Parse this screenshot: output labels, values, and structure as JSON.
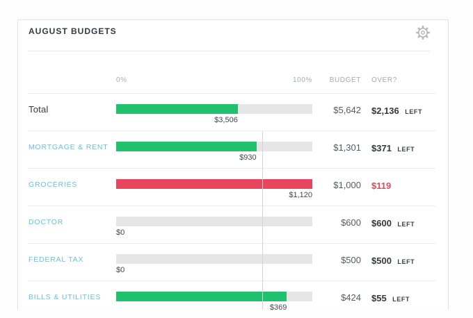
{
  "card": {
    "title": "AUGUST BUDGETS",
    "gear_icon": "settings-gear"
  },
  "columns": {
    "scale_start": "0%",
    "scale_end": "100%",
    "budget": "BUDGET",
    "over": "OVER?"
  },
  "colors": {
    "green": "#20c06d",
    "red": "#e8465f",
    "track": "#e6e6e6",
    "marker": "#d2d5d6",
    "category_link": "#6fbfd6",
    "over_red_text": "#e2485e"
  },
  "chart": {
    "type": "bar",
    "marker_pct": 75,
    "scale": [
      0,
      100
    ]
  },
  "rows": [
    {
      "type": "total",
      "label": "Total",
      "spent": 3506,
      "spent_label": "$3,506",
      "pct": 62,
      "bar_color": "green",
      "budget": 5642,
      "budget_label": "$5,642",
      "over_amount": 2136,
      "over_label": "$2,136",
      "over_suffix": "LEFT",
      "over_status": "ok"
    },
    {
      "type": "category",
      "label": "MORTGAGE & RENT",
      "spent": 930,
      "spent_label": "$930",
      "pct": 71.5,
      "bar_color": "green",
      "budget": 1301,
      "budget_label": "$1,301",
      "over_amount": 371,
      "over_label": "$371",
      "over_suffix": "LEFT",
      "over_status": "ok"
    },
    {
      "type": "category",
      "label": "GROCERIES",
      "spent": 1120,
      "spent_label": "$1,120",
      "pct": 100,
      "bar_color": "red",
      "budget": 1000,
      "budget_label": "$1,000",
      "over_amount": 119,
      "over_label": "$119",
      "over_suffix": "",
      "over_status": "over"
    },
    {
      "type": "category",
      "label": "DOCTOR",
      "spent": 0,
      "spent_label": "$0",
      "pct": 0,
      "bar_color": "none",
      "budget": 600,
      "budget_label": "$600",
      "over_amount": 600,
      "over_label": "$600",
      "over_suffix": "LEFT",
      "over_status": "ok"
    },
    {
      "type": "category",
      "label": "FEDERAL TAX",
      "spent": 0,
      "spent_label": "$0",
      "pct": 0,
      "bar_color": "none",
      "budget": 500,
      "budget_label": "$500",
      "over_amount": 500,
      "over_label": "$500",
      "over_suffix": "LEFT",
      "over_status": "ok"
    },
    {
      "type": "category",
      "label": "BILLS & UTILITIES",
      "spent": 369,
      "spent_label": "$369",
      "pct": 87,
      "bar_color": "green",
      "budget": 424,
      "budget_label": "$424",
      "over_amount": 55,
      "over_label": "$55",
      "over_suffix": "LEFT",
      "over_status": "ok"
    }
  ]
}
